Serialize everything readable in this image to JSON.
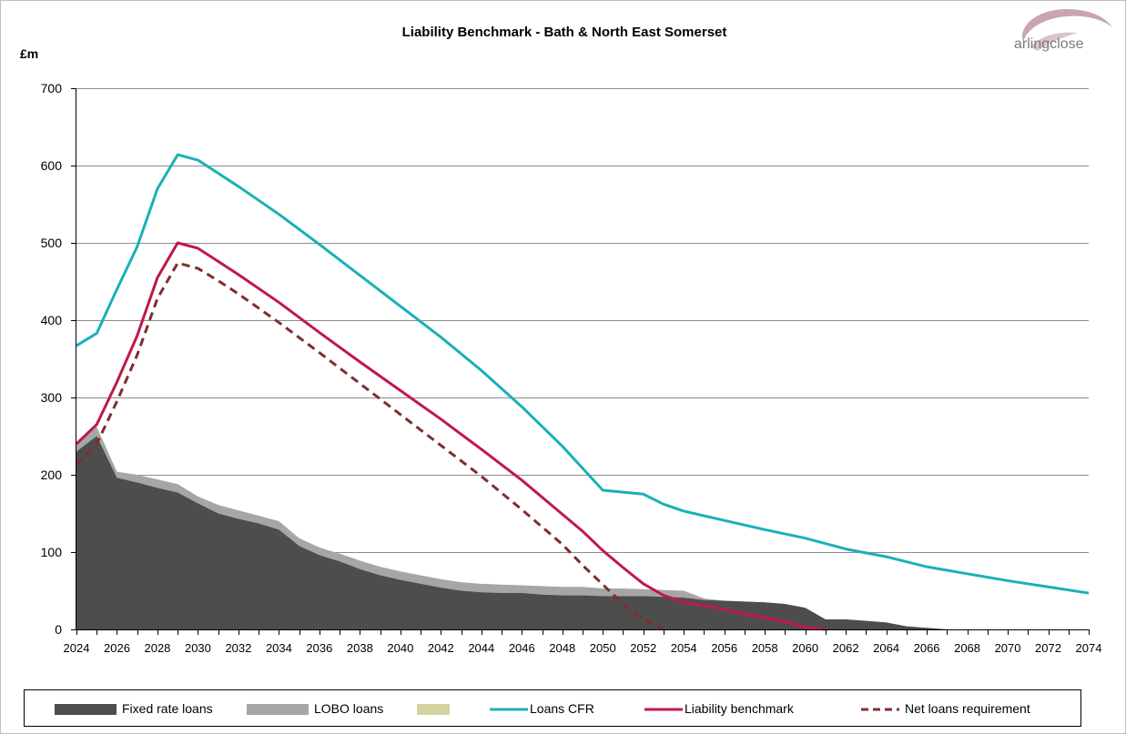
{
  "chart_data": {
    "type": "area",
    "title": "Liability Benchmark - Bath & North East Somerset",
    "ylabel": "£m",
    "ylim": [
      0,
      700
    ],
    "yticks": [
      "0",
      "100",
      "200",
      "300",
      "400",
      "500",
      "600",
      "700"
    ],
    "xlim": [
      2024,
      2074
    ],
    "xticks": [
      "2024",
      "2026",
      "2028",
      "2030",
      "2032",
      "2034",
      "2036",
      "2038",
      "2040",
      "2042",
      "2044",
      "2046",
      "2048",
      "2050",
      "2052",
      "2054",
      "2056",
      "2058",
      "2060",
      "2062",
      "2064",
      "2066",
      "2068",
      "2070",
      "2072",
      "2074"
    ],
    "grid": "horizontal",
    "legend_position": "bottom",
    "logo": "arlingclose",
    "colors": {
      "fixed": "#4d4d4d",
      "lobo": "#a6a6a6",
      "third": "#d5d4a1",
      "cfr": "#1ab0b8",
      "liability": "#c0184a",
      "net": "#7f2d2d"
    },
    "series": [
      {
        "name": "Fixed rate loans",
        "kind": "area",
        "points": [
          [
            2024,
            230
          ],
          [
            2025,
            250
          ],
          [
            2026,
            196
          ],
          [
            2027,
            190
          ],
          [
            2028,
            183
          ],
          [
            2029,
            177
          ],
          [
            2030,
            163
          ],
          [
            2031,
            150
          ],
          [
            2032,
            143
          ],
          [
            2033,
            137
          ],
          [
            2034,
            129
          ],
          [
            2035,
            108
          ],
          [
            2036,
            96
          ],
          [
            2037,
            88
          ],
          [
            2038,
            78
          ],
          [
            2039,
            70
          ],
          [
            2040,
            64
          ],
          [
            2041,
            59
          ],
          [
            2042,
            54
          ],
          [
            2043,
            50
          ],
          [
            2044,
            48
          ],
          [
            2045,
            47
          ],
          [
            2046,
            47
          ],
          [
            2047,
            45
          ],
          [
            2048,
            44
          ],
          [
            2049,
            44
          ],
          [
            2050,
            43
          ],
          [
            2051,
            43
          ],
          [
            2052,
            43
          ],
          [
            2053,
            42
          ],
          [
            2054,
            41
          ],
          [
            2055,
            38
          ],
          [
            2056,
            37
          ],
          [
            2057,
            36
          ],
          [
            2058,
            35
          ],
          [
            2059,
            33
          ],
          [
            2060,
            28
          ],
          [
            2061,
            13
          ],
          [
            2062,
            13
          ],
          [
            2063,
            11
          ],
          [
            2064,
            9
          ],
          [
            2065,
            4
          ],
          [
            2066,
            2
          ],
          [
            2067,
            0
          ],
          [
            2074,
            0
          ]
        ]
      },
      {
        "name": "LOBO loans",
        "kind": "area_stack",
        "points": [
          [
            2024,
            240
          ],
          [
            2025,
            262
          ],
          [
            2026,
            204
          ],
          [
            2027,
            200
          ],
          [
            2028,
            194
          ],
          [
            2029,
            188
          ],
          [
            2030,
            172
          ],
          [
            2031,
            161
          ],
          [
            2032,
            154
          ],
          [
            2033,
            147
          ],
          [
            2034,
            140
          ],
          [
            2035,
            118
          ],
          [
            2036,
            106
          ],
          [
            2037,
            98
          ],
          [
            2038,
            89
          ],
          [
            2039,
            81
          ],
          [
            2040,
            75
          ],
          [
            2041,
            70
          ],
          [
            2042,
            65
          ],
          [
            2043,
            61
          ],
          [
            2044,
            59
          ],
          [
            2045,
            58
          ],
          [
            2046,
            57
          ],
          [
            2047,
            56
          ],
          [
            2048,
            55
          ],
          [
            2049,
            55
          ],
          [
            2050,
            53
          ],
          [
            2051,
            53
          ],
          [
            2052,
            52
          ],
          [
            2053,
            51
          ],
          [
            2054,
            50
          ],
          [
            2055,
            40
          ],
          [
            2056,
            37
          ],
          [
            2057,
            36
          ],
          [
            2058,
            35
          ],
          [
            2059,
            33
          ],
          [
            2060,
            28
          ],
          [
            2061,
            13
          ],
          [
            2062,
            13
          ],
          [
            2063,
            11
          ],
          [
            2064,
            9
          ],
          [
            2065,
            4
          ],
          [
            2066,
            2
          ],
          [
            2067,
            0
          ],
          [
            2074,
            0
          ]
        ]
      },
      {
        "name": "",
        "kind": "area_legend_only",
        "points": []
      },
      {
        "name": "Loans CFR",
        "kind": "line",
        "points": [
          [
            2024,
            367
          ],
          [
            2025,
            383
          ],
          [
            2026,
            440
          ],
          [
            2027,
            495
          ],
          [
            2028,
            570
          ],
          [
            2029,
            614
          ],
          [
            2030,
            607
          ],
          [
            2032,
            573
          ],
          [
            2034,
            537
          ],
          [
            2036,
            498
          ],
          [
            2038,
            458
          ],
          [
            2040,
            418
          ],
          [
            2042,
            378
          ],
          [
            2044,
            335
          ],
          [
            2046,
            288
          ],
          [
            2048,
            237
          ],
          [
            2050,
            180
          ],
          [
            2052,
            175
          ],
          [
            2053,
            162
          ],
          [
            2054,
            153
          ],
          [
            2056,
            141
          ],
          [
            2058,
            129
          ],
          [
            2060,
            118
          ],
          [
            2062,
            104
          ],
          [
            2064,
            94
          ],
          [
            2066,
            81
          ],
          [
            2068,
            72
          ],
          [
            2070,
            63
          ],
          [
            2072,
            55
          ],
          [
            2074,
            47
          ]
        ]
      },
      {
        "name": "Liability benchmark",
        "kind": "line",
        "points": [
          [
            2024,
            240
          ],
          [
            2025,
            265
          ],
          [
            2026,
            320
          ],
          [
            2027,
            380
          ],
          [
            2028,
            455
          ],
          [
            2029,
            500
          ],
          [
            2030,
            493
          ],
          [
            2031,
            476
          ],
          [
            2032,
            459
          ],
          [
            2034,
            423
          ],
          [
            2036,
            384
          ],
          [
            2038,
            346
          ],
          [
            2040,
            309
          ],
          [
            2042,
            272
          ],
          [
            2044,
            233
          ],
          [
            2046,
            193
          ],
          [
            2048,
            149
          ],
          [
            2049,
            127
          ],
          [
            2050,
            102
          ],
          [
            2051,
            80
          ],
          [
            2052,
            59
          ],
          [
            2053,
            44
          ],
          [
            2054,
            35
          ],
          [
            2055,
            31
          ],
          [
            2056,
            26
          ],
          [
            2057,
            20
          ],
          [
            2058,
            15
          ],
          [
            2059,
            10
          ],
          [
            2060,
            3
          ],
          [
            2061,
            0
          ]
        ]
      },
      {
        "name": "Net loans requirement",
        "kind": "dashed",
        "points": [
          [
            2024,
            213
          ],
          [
            2025,
            240
          ],
          [
            2026,
            295
          ],
          [
            2027,
            355
          ],
          [
            2028,
            428
          ],
          [
            2029,
            474
          ],
          [
            2030,
            467
          ],
          [
            2031,
            451
          ],
          [
            2032,
            434
          ],
          [
            2034,
            397
          ],
          [
            2036,
            358
          ],
          [
            2038,
            318
          ],
          [
            2040,
            278
          ],
          [
            2042,
            238
          ],
          [
            2044,
            198
          ],
          [
            2046,
            155
          ],
          [
            2048,
            110
          ],
          [
            2049,
            83
          ],
          [
            2050,
            58
          ],
          [
            2051,
            33
          ],
          [
            2052,
            13
          ],
          [
            2053,
            0
          ]
        ]
      }
    ]
  }
}
